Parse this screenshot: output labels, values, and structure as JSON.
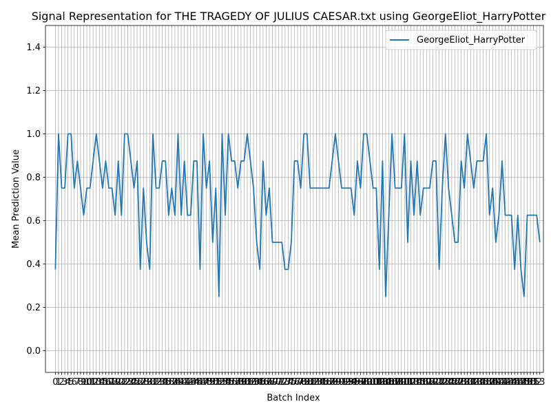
{
  "chart_data": {
    "type": "line",
    "title": "Signal Representation for THE TRAGEDY OF JULIUS CAESAR.txt using GeorgeEliot_HarryPotter",
    "xlabel": "Batch Index",
    "ylabel": "Mean Prediction Value",
    "xlim": [
      -3.15,
      155.15
    ],
    "ylim": [
      -0.1,
      1.5
    ],
    "y_ticks": [
      "0.0",
      "0.2",
      "0.4",
      "0.6",
      "0.8",
      "1.0",
      "1.2",
      "1.4"
    ],
    "x_tick_labels_visible": [
      "0",
      "1",
      "2",
      "3",
      "4",
      "5",
      "6",
      "7",
      "8",
      "9",
      "10",
      "11",
      "12",
      "13",
      "14",
      "15",
      "16",
      "17",
      "18",
      "19",
      "20",
      "21",
      "22",
      "23",
      "24",
      "25",
      "26",
      "27",
      "28",
      "29",
      "30",
      "31",
      "32",
      "33",
      "34",
      "35",
      "36",
      "37",
      "38",
      "39",
      "40",
      "41",
      "42",
      "43",
      "44",
      "45",
      "46",
      "47",
      "48",
      "49",
      "50",
      "51",
      "52",
      "53",
      "54",
      "55",
      "56",
      "57",
      "58",
      "59",
      "60",
      "61",
      "62",
      "63",
      "64",
      "65",
      "66",
      "67",
      "68",
      "69",
      "70",
      "71",
      "72",
      "73",
      "74",
      "75",
      "76",
      "77",
      "78",
      "79",
      "80",
      "81",
      "82",
      "83",
      "84",
      "85",
      "86",
      "87",
      "88",
      "89",
      "90",
      "91",
      "92",
      "93",
      "94",
      "95",
      "96",
      "97",
      "98",
      "99",
      "100",
      "101",
      "102",
      "103",
      "104",
      "105",
      "106",
      "107",
      "108",
      "109",
      "110",
      "111",
      "112",
      "113",
      "114",
      "115",
      "116",
      "117",
      "118",
      "119",
      "120",
      "121",
      "122",
      "123",
      "124",
      "125",
      "126",
      "127",
      "128",
      "129",
      "130",
      "131",
      "132",
      "133",
      "134",
      "135",
      "136",
      "137",
      "138",
      "139",
      "140",
      "141",
      "142",
      "143",
      "144",
      "145",
      "146",
      "147",
      "148",
      "149",
      "150",
      "151",
      "152",
      "153"
    ],
    "grid": true,
    "legend_position": "top-right",
    "series": [
      {
        "name": "GeorgeEliot_HarryPotter",
        "color": "#1f77b4",
        "values": [
          0.375,
          1.0,
          0.75,
          0.75,
          1.0,
          1.0,
          0.75,
          0.875,
          0.75,
          0.625,
          0.75,
          0.75,
          0.875,
          1.0,
          0.875,
          0.75,
          0.875,
          0.75,
          0.75,
          0.625,
          0.875,
          0.625,
          1.0,
          1.0,
          0.875,
          0.75,
          0.875,
          0.375,
          0.75,
          0.5,
          0.375,
          1.0,
          0.75,
          0.75,
          0.875,
          0.875,
          0.625,
          0.75,
          0.625,
          1.0,
          0.625,
          0.875,
          0.625,
          0.625,
          0.875,
          0.875,
          0.375,
          1.0,
          0.75,
          0.875,
          0.5,
          0.75,
          0.25,
          1.0,
          0.625,
          1.0,
          0.875,
          0.875,
          0.75,
          0.875,
          0.875,
          1.0,
          0.875,
          0.75,
          0.5,
          0.375,
          0.875,
          0.625,
          0.75,
          0.5,
          0.5,
          0.5,
          0.5,
          0.375,
          0.375,
          0.5,
          0.875,
          0.875,
          0.75,
          1.0,
          1.0,
          0.75,
          0.75,
          0.75,
          0.75,
          0.75,
          0.75,
          0.75,
          0.875,
          1.0,
          0.875,
          0.75,
          0.75,
          0.75,
          0.75,
          0.625,
          0.875,
          0.75,
          1.0,
          1.0,
          0.875,
          0.75,
          0.75,
          0.375,
          0.875,
          0.25,
          0.625,
          1.0,
          0.75,
          0.75,
          0.75,
          1.0,
          0.5,
          0.875,
          0.625,
          0.875,
          0.625,
          0.75,
          0.75,
          0.75,
          0.875,
          0.875,
          0.375,
          0.75,
          1.0,
          0.75,
          0.625,
          0.5,
          0.5,
          0.875,
          0.75,
          1.0,
          0.875,
          0.75,
          0.875,
          0.875,
          0.875,
          1.0,
          0.625,
          0.75,
          0.5,
          0.625,
          0.875,
          0.625,
          0.625,
          0.625,
          0.375,
          0.625,
          0.375,
          0.25,
          0.625,
          0.625,
          0.625,
          0.625,
          0.5
        ]
      }
    ]
  }
}
